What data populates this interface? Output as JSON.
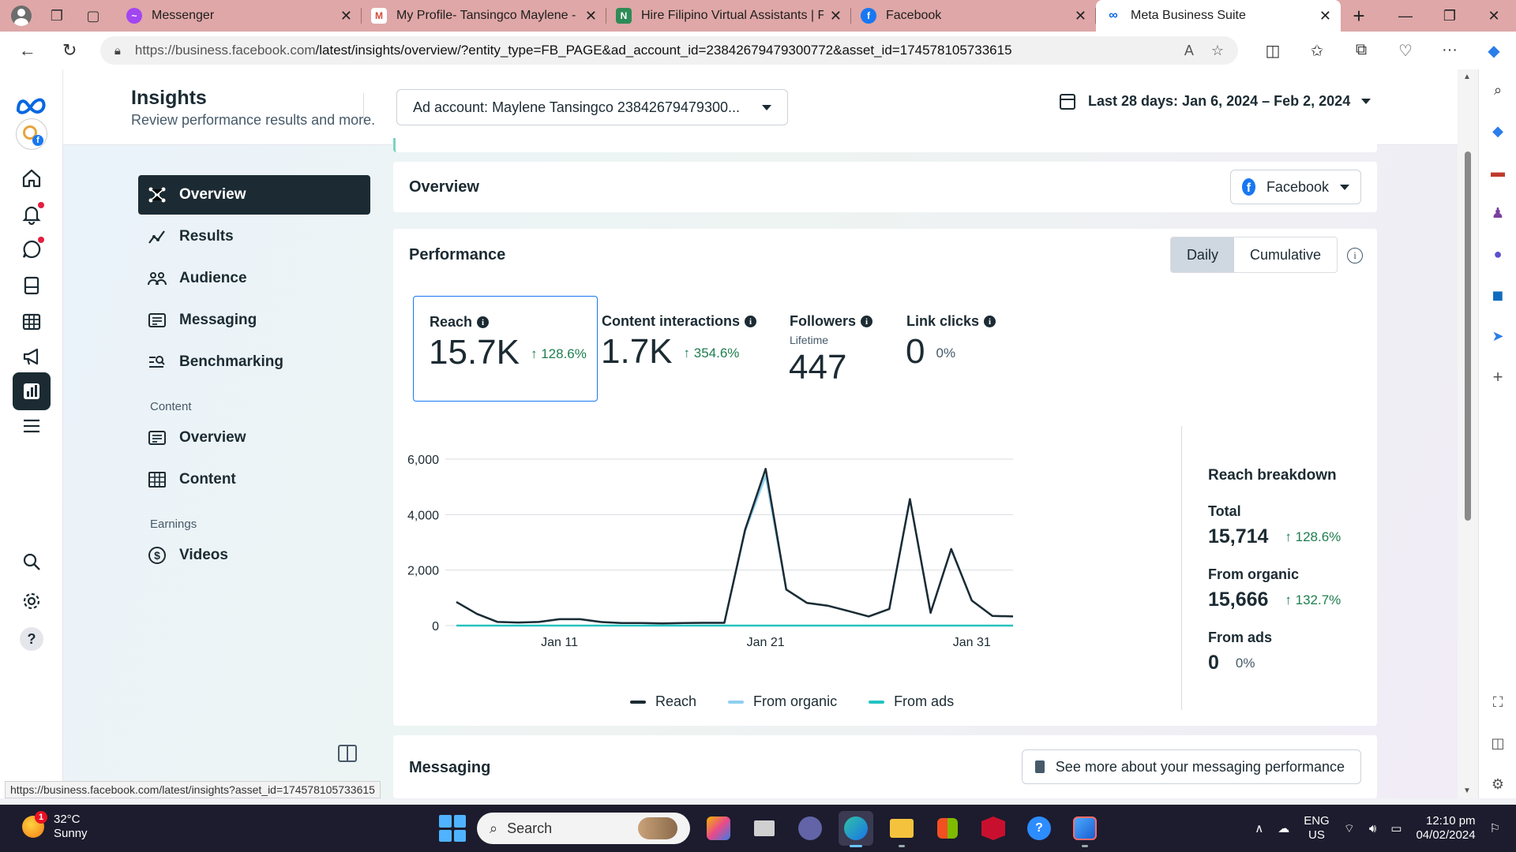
{
  "browser": {
    "tabs": [
      {
        "title": "Messenger",
        "favicon_color": "#a246f2",
        "active": false
      },
      {
        "title": "My Profile- Tansingco Maylene -",
        "favicon_color": "#d34b3b",
        "active": false
      },
      {
        "title": "Hire Filipino Virtual Assistants | F",
        "favicon_color": "#2e8b57",
        "active": false
      },
      {
        "title": "Facebook",
        "favicon_color": "#1877f2",
        "active": false
      },
      {
        "title": "Meta Business Suite",
        "favicon_color": "#0668e1",
        "active": true
      }
    ],
    "url_host": "https://business.facebook.com",
    "url_path": "/latest/insights/overview/?entity_type=FB_PAGE&ad_account_id=23842679479300772&asset_id=174578105733615",
    "status_url": "https://business.facebook.com/latest/insights?asset_id=174578105733615"
  },
  "header": {
    "title": "Insights",
    "subtitle": "Review performance results and more.",
    "ad_account": "Ad account: Maylene Tansingco 23842679479300...",
    "date_range": "Last 28 days: Jan 6, 2024 – Feb 2, 2024"
  },
  "subnav": {
    "items": [
      {
        "label": "Overview",
        "icon": "overview-icon",
        "active": true
      },
      {
        "label": "Results",
        "icon": "results-icon"
      },
      {
        "label": "Audience",
        "icon": "audience-icon"
      },
      {
        "label": "Messaging",
        "icon": "messaging-icon"
      },
      {
        "label": "Benchmarking",
        "icon": "benchmarking-icon"
      }
    ],
    "content_section": "Content",
    "content_items": [
      {
        "label": "Overview",
        "icon": "content-overview-icon"
      },
      {
        "label": "Content",
        "icon": "table-icon"
      }
    ],
    "earnings_section": "Earnings",
    "earnings_items": [
      {
        "label": "Videos",
        "icon": "dollar-icon"
      }
    ]
  },
  "overview": {
    "title": "Overview",
    "platform": "Facebook"
  },
  "performance": {
    "title": "Performance",
    "toggle_daily": "Daily",
    "toggle_cumulative": "Cumulative",
    "metrics": [
      {
        "label": "Reach",
        "value": "15.7K",
        "change": "↑ 128.6%",
        "sub": ""
      },
      {
        "label": "Content interactions",
        "value": "1.7K",
        "change": "↑ 354.6%",
        "sub": ""
      },
      {
        "label": "Followers",
        "value": "447",
        "change": "",
        "sub": "Lifetime"
      },
      {
        "label": "Link clicks",
        "value": "0",
        "change": "0%",
        "sub": ""
      }
    ],
    "breakdown": {
      "title": "Reach breakdown",
      "total_label": "Total",
      "total_value": "15,714",
      "total_change": "↑ 128.6%",
      "organic_label": "From organic",
      "organic_value": "15,666",
      "organic_change": "↑ 132.7%",
      "ads_label": "From ads",
      "ads_value": "0",
      "ads_change": "0%"
    }
  },
  "chart_data": {
    "type": "line",
    "x": [
      "Jan 6",
      "Jan 7",
      "Jan 8",
      "Jan 9",
      "Jan 10",
      "Jan 11",
      "Jan 12",
      "Jan 13",
      "Jan 14",
      "Jan 15",
      "Jan 16",
      "Jan 17",
      "Jan 18",
      "Jan 19",
      "Jan 20",
      "Jan 21",
      "Jan 22",
      "Jan 23",
      "Jan 24",
      "Jan 25",
      "Jan 26",
      "Jan 27",
      "Jan 28",
      "Jan 29",
      "Jan 30",
      "Jan 31",
      "Feb 1",
      "Feb 2"
    ],
    "x_ticks": [
      "Jan 11",
      "Jan 21",
      "Jan 31"
    ],
    "y_ticks": [
      "6,000",
      "4,000",
      "2,000",
      "0"
    ],
    "ylim": [
      0,
      6000
    ],
    "series": [
      {
        "name": "Reach",
        "color": "#1c2b33",
        "values": [
          850,
          420,
          130,
          110,
          130,
          230,
          230,
          130,
          90,
          90,
          80,
          90,
          100,
          100,
          3450,
          5650,
          1300,
          820,
          720,
          530,
          330,
          600,
          4560,
          460,
          2760,
          900,
          350,
          330
        ]
      },
      {
        "name": "From organic",
        "color": "#8fd0f0",
        "values": [
          850,
          420,
          130,
          110,
          130,
          230,
          230,
          130,
          90,
          90,
          80,
          90,
          100,
          100,
          3400,
          5400,
          1300,
          820,
          720,
          530,
          330,
          600,
          4540,
          460,
          2750,
          900,
          350,
          330
        ]
      },
      {
        "name": "From ads",
        "color": "#24c3c0",
        "values": [
          0,
          0,
          0,
          0,
          0,
          0,
          0,
          0,
          0,
          0,
          0,
          0,
          0,
          0,
          0,
          0,
          0,
          0,
          0,
          0,
          0,
          0,
          0,
          0,
          0,
          0,
          0,
          0
        ]
      }
    ],
    "grid": true,
    "legend": "bottom"
  },
  "messaging": {
    "title": "Messaging",
    "button": "See more about your messaging performance"
  },
  "taskbar": {
    "temp": "32°C",
    "weather": "Sunny",
    "weather_badge": "1",
    "search_placeholder": "Search",
    "lang": "ENG",
    "region": "US",
    "time": "12:10 pm",
    "date": "04/02/2024"
  }
}
